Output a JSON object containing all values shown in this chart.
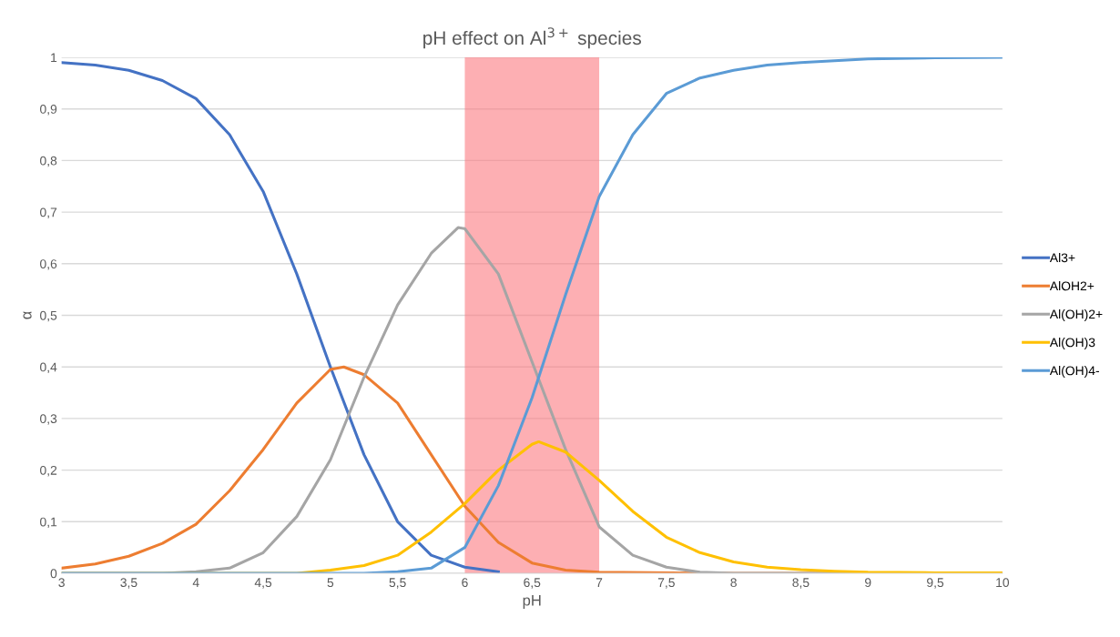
{
  "chart_data": {
    "type": "line",
    "title": "pH effect on Al$^{3+}$ species",
    "xlabel": "pH",
    "ylabel": "α",
    "xlim": [
      3,
      10
    ],
    "xticks": [
      3,
      {
        "value": 3.5,
        "label": "3,5"
      },
      4,
      {
        "value": 4.5,
        "label": "4,5"
      },
      5,
      {
        "value": 5.5,
        "label": "5,5"
      },
      6,
      {
        "value": 6.5,
        "label": "6,5"
      },
      7,
      {
        "value": 7.5,
        "label": "7,5"
      },
      8,
      {
        "value": 8.5,
        "label": "8,5"
      },
      9,
      {
        "value": 9.5,
        "label": "9,5"
      },
      10
    ],
    "ylim": [
      0,
      1
    ],
    "yticks": [
      0,
      {
        "value": 0.1,
        "label": "0,1"
      },
      {
        "value": 0.2,
        "label": "0,2"
      },
      {
        "value": 0.3,
        "label": "0,3"
      },
      {
        "value": 0.4,
        "label": "0,4"
      },
      {
        "value": 0.5,
        "label": "0,5"
      },
      {
        "value": 0.6,
        "label": "0,6"
      },
      {
        "value": 0.7,
        "label": "0,7"
      },
      {
        "value": 0.8,
        "label": "0,8"
      },
      {
        "value": 0.9,
        "label": "0,9"
      },
      1
    ],
    "grid": "y",
    "legend": "right",
    "marker": "none",
    "line_style": "solid",
    "bands": [
      {
        "axis": "x",
        "from": 6,
        "to": 7,
        "color": "#fc7a80"
      }
    ],
    "series": [
      {
        "name": "Al3+",
        "color": "#4472c4",
        "x": [
          3,
          3.25,
          3.5,
          3.75,
          4,
          4.25,
          4.5,
          4.75,
          5,
          5.25,
          5.5,
          5.75,
          6,
          6.25
        ],
        "values": [
          0.99,
          0.985,
          0.975,
          0.955,
          0.92,
          0.85,
          0.74,
          0.58,
          0.4,
          0.23,
          0.1,
          0.035,
          0.012,
          0.003
        ]
      },
      {
        "name": "AlOH2+",
        "color": "#ed7d31",
        "x": [
          3,
          3.25,
          3.5,
          3.75,
          4,
          4.25,
          4.5,
          4.75,
          5,
          5.1,
          5.25,
          5.5,
          5.75,
          6,
          6.25,
          6.5,
          6.75,
          7,
          8,
          9,
          10
        ],
        "values": [
          0.01,
          0.018,
          0.033,
          0.058,
          0.095,
          0.16,
          0.24,
          0.33,
          0.395,
          0.4,
          0.385,
          0.33,
          0.23,
          0.13,
          0.06,
          0.02,
          0.006,
          0.002,
          0,
          0,
          0
        ]
      },
      {
        "name": "Al(OH)2+",
        "color": "#a5a5a5",
        "x": [
          3,
          3.5,
          3.75,
          4,
          4.25,
          4.5,
          4.75,
          5,
          5.25,
          5.5,
          5.75,
          5.95,
          6,
          6.25,
          6.5,
          6.75,
          7,
          7.25,
          7.5,
          7.75,
          8,
          9,
          10
        ],
        "values": [
          0,
          0,
          0,
          0.003,
          0.01,
          0.04,
          0.11,
          0.22,
          0.38,
          0.52,
          0.62,
          0.67,
          0.668,
          0.58,
          0.41,
          0.24,
          0.09,
          0.035,
          0.012,
          0.002,
          0,
          0,
          0
        ]
      },
      {
        "name": "Al(OH)3",
        "color": "#ffc000",
        "x": [
          3,
          4,
          4.75,
          5,
          5.25,
          5.5,
          5.75,
          6,
          6.25,
          6.5,
          6.55,
          6.75,
          7,
          7.25,
          7.5,
          7.75,
          8,
          8.25,
          8.5,
          8.75,
          9,
          9.5,
          10
        ],
        "values": [
          0,
          0,
          0,
          0.006,
          0.015,
          0.035,
          0.08,
          0.135,
          0.2,
          0.25,
          0.255,
          0.235,
          0.18,
          0.12,
          0.07,
          0.04,
          0.022,
          0.012,
          0.007,
          0.004,
          0.002,
          0.001,
          0.001
        ]
      },
      {
        "name": "Al(OH)4-",
        "color": "#5b9bd5",
        "x": [
          3,
          4,
          5,
          5.25,
          5.5,
          5.75,
          6,
          6.25,
          6.5,
          6.75,
          7,
          7.25,
          7.5,
          7.75,
          8,
          8.25,
          8.5,
          9,
          9.5,
          10
        ],
        "values": [
          0,
          0,
          0,
          0,
          0.003,
          0.01,
          0.05,
          0.17,
          0.34,
          0.54,
          0.73,
          0.85,
          0.93,
          0.96,
          0.975,
          0.985,
          0.99,
          0.997,
          0.999,
          1
        ]
      }
    ]
  }
}
